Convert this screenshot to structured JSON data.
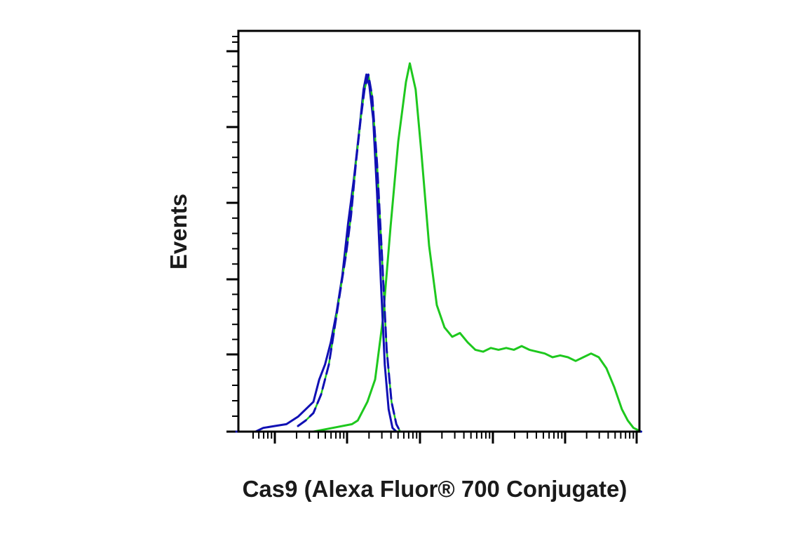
{
  "chart_data": {
    "type": "line",
    "xlabel": "Cas9 (Alexa Fluor® 700 Conjugate)",
    "ylabel": "Events",
    "x_scale": "log",
    "ylim": [
      0,
      100
    ],
    "grid": false,
    "colors": {
      "green": "#1ec81e",
      "blue": "#1010b4",
      "axis": "#000000"
    },
    "series": [
      {
        "color": "green",
        "style": "solid",
        "points": [
          [
            0,
            0
          ],
          [
            2,
            0
          ],
          [
            3,
            1
          ],
          [
            4,
            2
          ],
          [
            4.3,
            3
          ],
          [
            4.8,
            8
          ],
          [
            5.2,
            14
          ],
          [
            5.6,
            30
          ],
          [
            6,
            55
          ],
          [
            6.4,
            78
          ],
          [
            6.8,
            94
          ],
          [
            7,
            99
          ],
          [
            7.3,
            92
          ],
          [
            7.6,
            75
          ],
          [
            8,
            50
          ],
          [
            8.4,
            34
          ],
          [
            8.8,
            28
          ],
          [
            9.2,
            25.5
          ],
          [
            9.6,
            26.5
          ],
          [
            10,
            24
          ],
          [
            10.4,
            22
          ],
          [
            10.8,
            21.5
          ],
          [
            11.2,
            22.5
          ],
          [
            11.6,
            22
          ],
          [
            12,
            22.5
          ],
          [
            12.4,
            22
          ],
          [
            12.8,
            23
          ],
          [
            13.2,
            22
          ],
          [
            13.6,
            21.5
          ],
          [
            14,
            21
          ],
          [
            14.4,
            20
          ],
          [
            14.8,
            20.5
          ],
          [
            15.2,
            20
          ],
          [
            15.6,
            19
          ],
          [
            16,
            20
          ],
          [
            16.4,
            21
          ],
          [
            16.8,
            20
          ],
          [
            17.2,
            17
          ],
          [
            17.6,
            12
          ],
          [
            18,
            6
          ],
          [
            18.3,
            3
          ],
          [
            18.6,
            1
          ],
          [
            19,
            0
          ]
        ]
      },
      {
        "color": "blue",
        "style": "solid",
        "points": [
          [
            -2,
            0
          ],
          [
            -1,
            0
          ],
          [
            -0.6,
            1
          ],
          [
            0,
            1.5
          ],
          [
            0.6,
            2
          ],
          [
            1.2,
            4
          ],
          [
            1.6,
            6
          ],
          [
            2,
            8
          ],
          [
            2.3,
            14
          ],
          [
            2.6,
            18
          ],
          [
            2.9,
            24
          ],
          [
            3.2,
            32
          ],
          [
            3.5,
            42
          ],
          [
            3.8,
            56
          ],
          [
            4.1,
            68
          ],
          [
            4.4,
            82
          ],
          [
            4.6,
            92
          ],
          [
            4.75,
            96
          ],
          [
            4.9,
            93
          ],
          [
            5.1,
            84
          ],
          [
            5.3,
            64
          ],
          [
            5.5,
            40
          ],
          [
            5.7,
            18
          ],
          [
            5.9,
            6
          ],
          [
            6.1,
            1
          ],
          [
            6.3,
            0
          ],
          [
            19,
            0
          ]
        ]
      },
      {
        "color": "blue",
        "style": "dashed",
        "points": [
          [
            1.2,
            1.5
          ],
          [
            1.6,
            3
          ],
          [
            2,
            5
          ],
          [
            2.4,
            10
          ],
          [
            2.8,
            18
          ],
          [
            3.1,
            28
          ],
          [
            3.4,
            38
          ],
          [
            3.7,
            48
          ],
          [
            3.95,
            58
          ],
          [
            4.2,
            72
          ],
          [
            4.45,
            84
          ],
          [
            4.65,
            92
          ],
          [
            4.85,
            96
          ],
          [
            5.05,
            90
          ],
          [
            5.3,
            72
          ],
          [
            5.55,
            48
          ],
          [
            5.8,
            22
          ],
          [
            6.05,
            8
          ],
          [
            6.3,
            2
          ],
          [
            6.5,
            0
          ]
        ]
      }
    ]
  }
}
